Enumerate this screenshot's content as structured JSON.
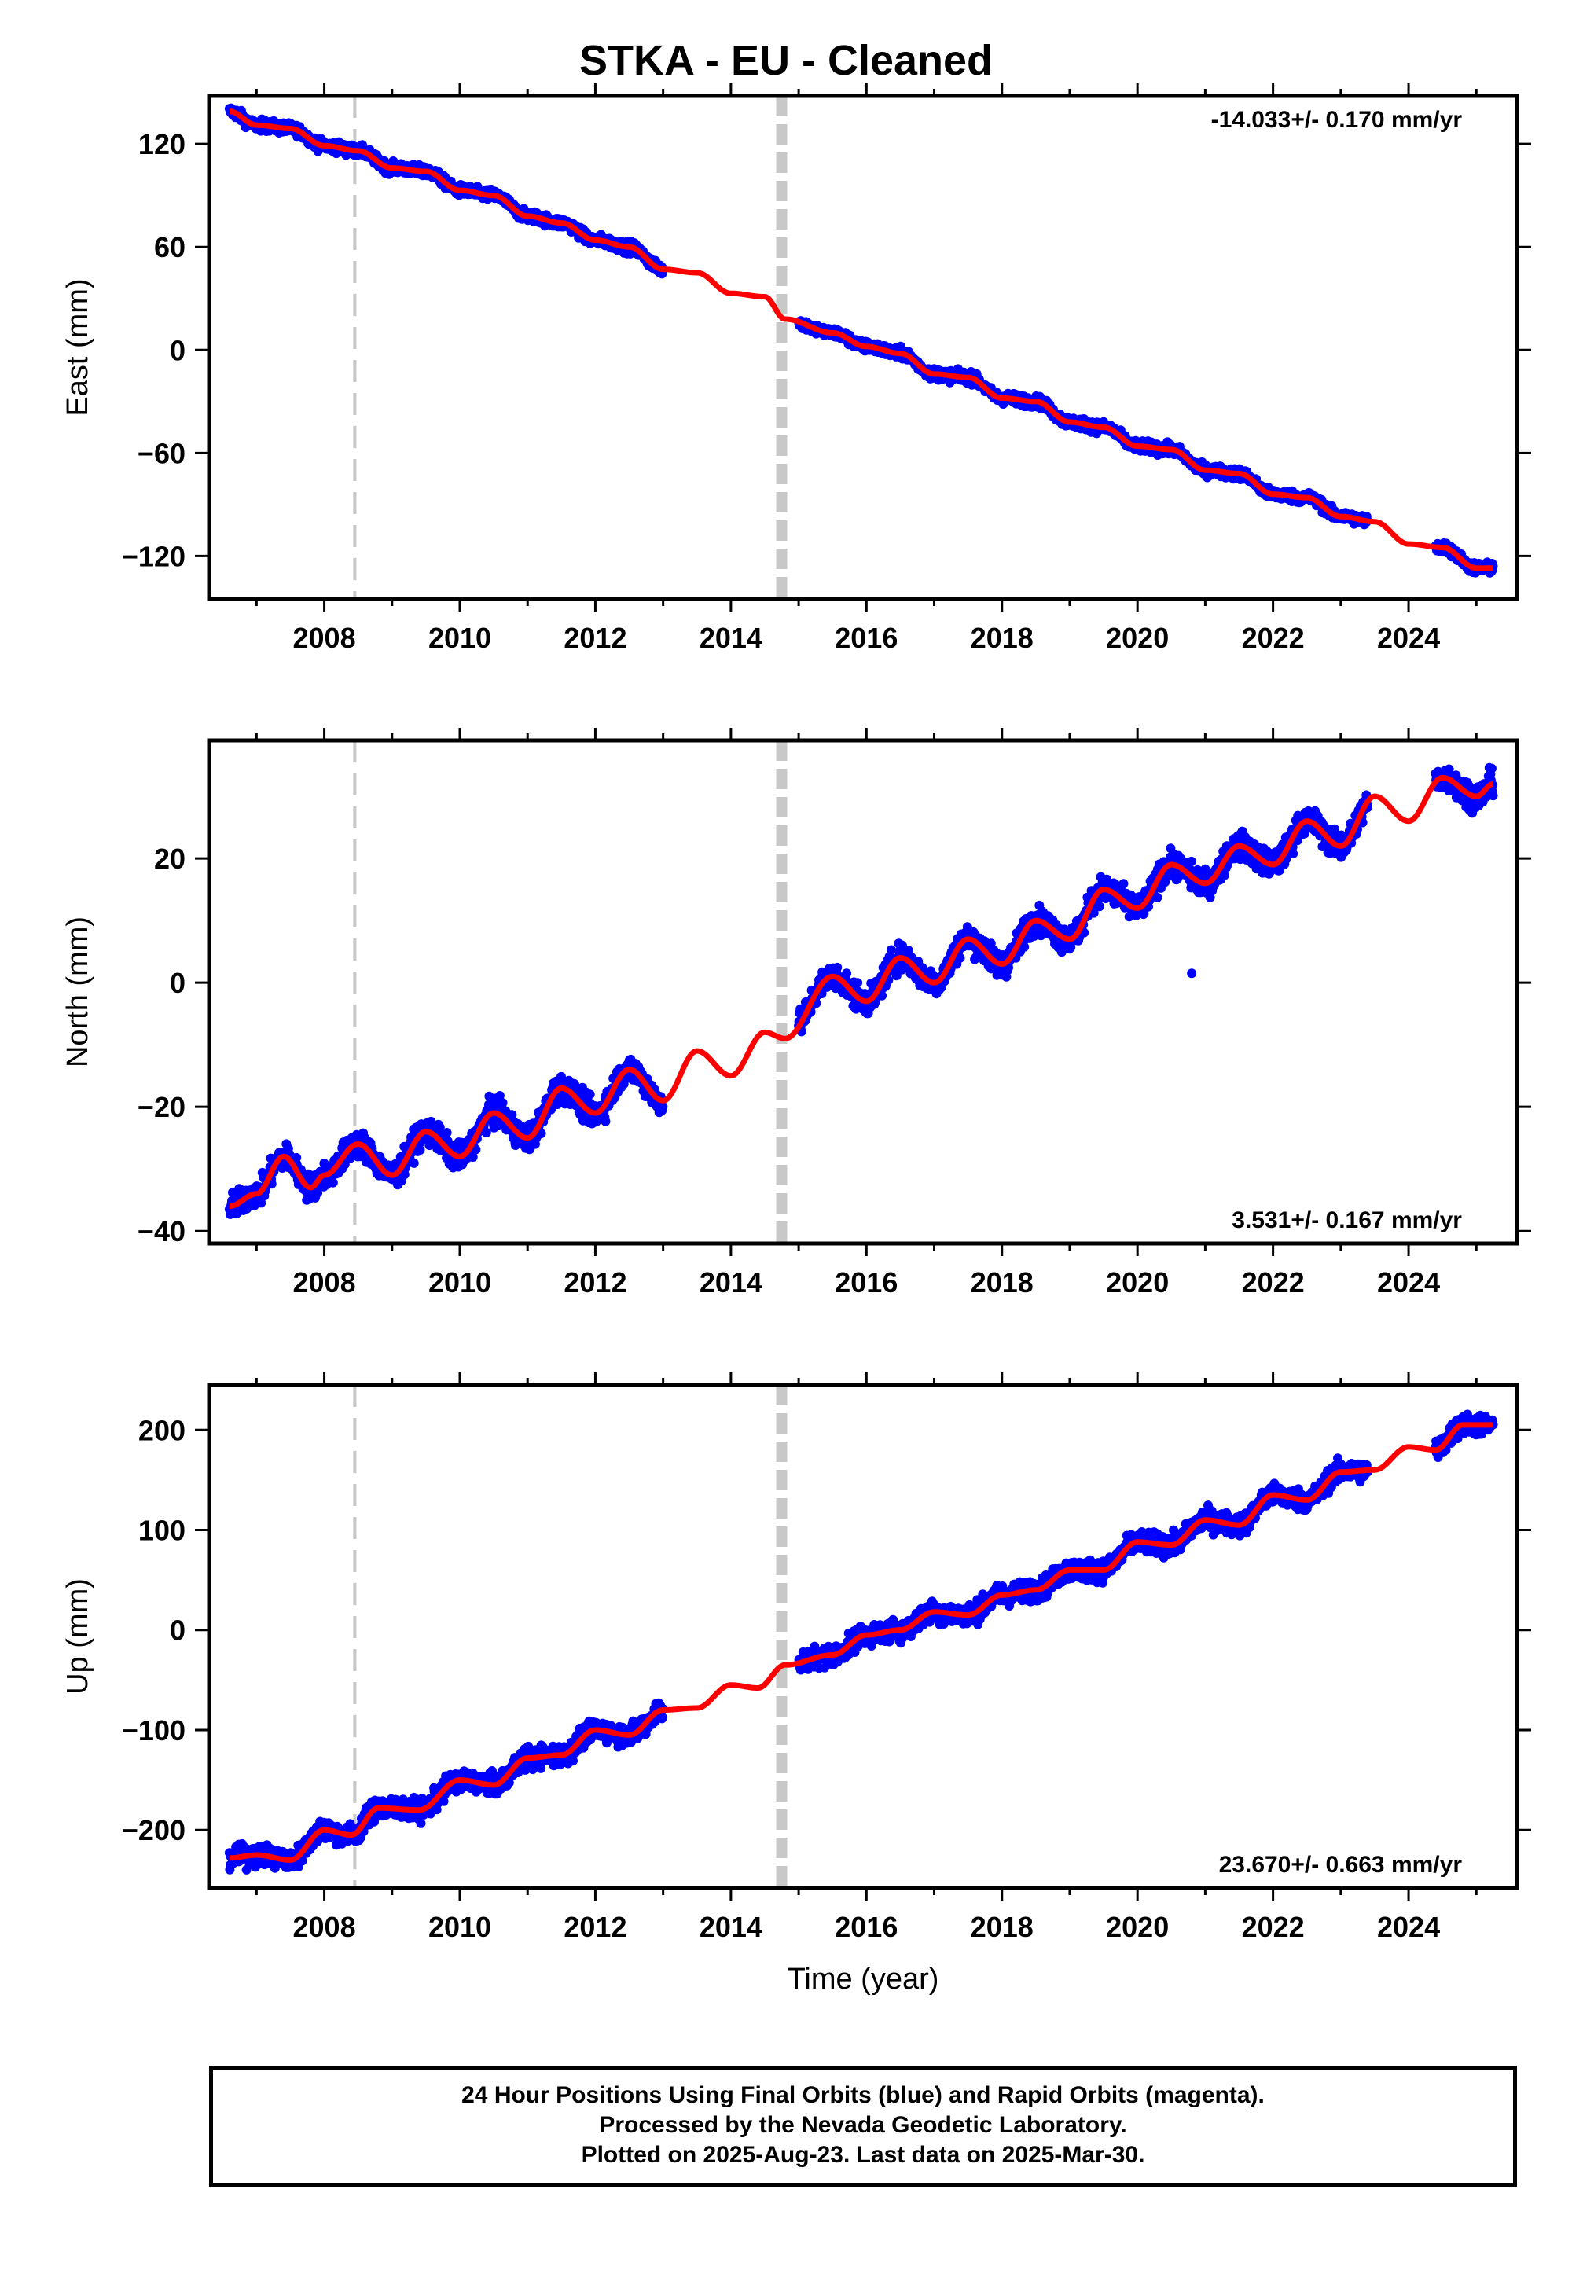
{
  "title": "STKA  - EU - Cleaned",
  "colors": {
    "data": "#0000ff",
    "model": "#ff0000",
    "equipment_change": "#c8c8c8"
  },
  "footer": {
    "line1": "24 Hour Positions Using Final Orbits (blue) and Rapid Orbits (magenta).",
    "line2": "Processed by the Nevada Geodetic Laboratory.",
    "line3": "Plotted on 2025-Aug-23. Last data on 2025-Mar-30."
  },
  "chart_data": [
    {
      "type": "scatter",
      "name": "east",
      "ylabel": "East (mm)",
      "xlabel": "",
      "xlim": [
        2006.3,
        2025.6
      ],
      "ylim": [
        -145,
        148
      ],
      "xticks": [
        2008,
        2010,
        2012,
        2014,
        2016,
        2018,
        2020,
        2022,
        2024
      ],
      "yticks": [
        -120,
        -60,
        0,
        60,
        120
      ],
      "rate_label": "-14.033+/- 0.170 mm/yr",
      "rate_position": "top-right",
      "equipment_changes": [
        2008.45,
        2014.75
      ],
      "data_segments": [
        [
          2006.6,
          2013.0
        ],
        [
          2015.0,
          2023.4
        ],
        [
          2024.4,
          2025.25
        ]
      ],
      "model_knots": [
        [
          2006.6,
          139
        ],
        [
          2007.0,
          131
        ],
        [
          2007.5,
          129
        ],
        [
          2008.0,
          119
        ],
        [
          2008.5,
          116
        ],
        [
          2009.0,
          106
        ],
        [
          2009.5,
          104
        ],
        [
          2010.0,
          93
        ],
        [
          2010.5,
          90
        ],
        [
          2011.0,
          78
        ],
        [
          2011.5,
          74
        ],
        [
          2012.0,
          64
        ],
        [
          2012.5,
          60
        ],
        [
          2013.0,
          47
        ],
        [
          2013.5,
          45
        ],
        [
          2014.0,
          33
        ],
        [
          2014.5,
          31
        ],
        [
          2014.8,
          18
        ],
        [
          2015.5,
          10
        ],
        [
          2016.0,
          2
        ],
        [
          2016.5,
          -2
        ],
        [
          2017.0,
          -14
        ],
        [
          2017.5,
          -16
        ],
        [
          2018.0,
          -28
        ],
        [
          2018.5,
          -30
        ],
        [
          2019.0,
          -42
        ],
        [
          2019.5,
          -45
        ],
        [
          2020.0,
          -56
        ],
        [
          2020.5,
          -58
        ],
        [
          2021.0,
          -70
        ],
        [
          2021.5,
          -72
        ],
        [
          2022.0,
          -84
        ],
        [
          2022.5,
          -86
        ],
        [
          2023.0,
          -97
        ],
        [
          2023.5,
          -100
        ],
        [
          2024.0,
          -113
        ],
        [
          2024.5,
          -115
        ],
        [
          2025.0,
          -127
        ],
        [
          2025.25,
          -127
        ]
      ],
      "scatter_noise": 3
    },
    {
      "type": "scatter",
      "name": "north",
      "ylabel": "North (mm)",
      "xlabel": "",
      "xlim": [
        2006.3,
        2025.6
      ],
      "ylim": [
        -42,
        39
      ],
      "xticks": [
        2008,
        2010,
        2012,
        2014,
        2016,
        2018,
        2020,
        2022,
        2024
      ],
      "yticks": [
        -40,
        -20,
        0,
        20
      ],
      "rate_label": "3.531+/- 0.167 mm/yr",
      "rate_position": "bottom-right",
      "equipment_changes": [
        2008.45,
        2014.75
      ],
      "data_segments": [
        [
          2006.6,
          2013.0
        ],
        [
          2015.0,
          2023.4
        ],
        [
          2024.4,
          2025.25
        ]
      ],
      "model_knots": [
        [
          2006.6,
          -36
        ],
        [
          2007.0,
          -34
        ],
        [
          2007.4,
          -28
        ],
        [
          2007.8,
          -33
        ],
        [
          2008.0,
          -31
        ],
        [
          2008.5,
          -26
        ],
        [
          2009.0,
          -31
        ],
        [
          2009.5,
          -24
        ],
        [
          2010.0,
          -28
        ],
        [
          2010.5,
          -21
        ],
        [
          2011.0,
          -25
        ],
        [
          2011.5,
          -17
        ],
        [
          2012.0,
          -21
        ],
        [
          2012.5,
          -14
        ],
        [
          2013.0,
          -19
        ],
        [
          2013.5,
          -11
        ],
        [
          2014.0,
          -15
        ],
        [
          2014.5,
          -8
        ],
        [
          2014.8,
          -9
        ],
        [
          2015.5,
          1
        ],
        [
          2016.0,
          -3
        ],
        [
          2016.5,
          4
        ],
        [
          2017.0,
          0
        ],
        [
          2017.5,
          7
        ],
        [
          2018.0,
          3
        ],
        [
          2018.5,
          10
        ],
        [
          2019.0,
          7
        ],
        [
          2019.5,
          15
        ],
        [
          2020.0,
          12
        ],
        [
          2020.5,
          19
        ],
        [
          2021.0,
          16
        ],
        [
          2021.5,
          22
        ],
        [
          2022.0,
          19
        ],
        [
          2022.5,
          26
        ],
        [
          2023.0,
          22
        ],
        [
          2023.5,
          30
        ],
        [
          2024.0,
          26
        ],
        [
          2024.5,
          33
        ],
        [
          2025.0,
          30
        ],
        [
          2025.25,
          32
        ]
      ],
      "scatter_noise": 2,
      "outliers": [
        [
          2020.8,
          1.5
        ]
      ]
    },
    {
      "type": "scatter",
      "name": "up",
      "ylabel": "Up (mm)",
      "xlabel": "Time (year)",
      "xlim": [
        2006.3,
        2025.6
      ],
      "ylim": [
        -258,
        245
      ],
      "xticks": [
        2008,
        2010,
        2012,
        2014,
        2016,
        2018,
        2020,
        2022,
        2024
      ],
      "yticks": [
        -200,
        -100,
        0,
        100,
        200
      ],
      "rate_label": "23.670+/- 0.663 mm/yr",
      "rate_position": "bottom-right",
      "equipment_changes": [
        2008.45,
        2014.75
      ],
      "data_segments": [
        [
          2006.6,
          2013.0
        ],
        [
          2015.0,
          2023.4
        ],
        [
          2024.4,
          2025.25
        ]
      ],
      "model_knots": [
        [
          2006.6,
          -228
        ],
        [
          2007.0,
          -225
        ],
        [
          2007.5,
          -230
        ],
        [
          2008.0,
          -200
        ],
        [
          2008.4,
          -205
        ],
        [
          2008.8,
          -178
        ],
        [
          2009.4,
          -180
        ],
        [
          2010.0,
          -150
        ],
        [
          2010.5,
          -155
        ],
        [
          2011.0,
          -128
        ],
        [
          2011.5,
          -125
        ],
        [
          2012.0,
          -100
        ],
        [
          2012.5,
          -105
        ],
        [
          2013.0,
          -80
        ],
        [
          2013.5,
          -78
        ],
        [
          2014.0,
          -55
        ],
        [
          2014.4,
          -58
        ],
        [
          2014.8,
          -35
        ],
        [
          2015.5,
          -25
        ],
        [
          2016.0,
          -5
        ],
        [
          2016.5,
          0
        ],
        [
          2017.0,
          18
        ],
        [
          2017.5,
          15
        ],
        [
          2018.0,
          35
        ],
        [
          2018.5,
          40
        ],
        [
          2019.0,
          60
        ],
        [
          2019.5,
          60
        ],
        [
          2020.0,
          88
        ],
        [
          2020.5,
          85
        ],
        [
          2021.0,
          110
        ],
        [
          2021.5,
          105
        ],
        [
          2022.0,
          135
        ],
        [
          2022.5,
          130
        ],
        [
          2023.0,
          158
        ],
        [
          2023.5,
          160
        ],
        [
          2024.0,
          183
        ],
        [
          2024.4,
          180
        ],
        [
          2024.8,
          205
        ],
        [
          2025.25,
          205
        ]
      ],
      "scatter_noise": 10
    }
  ]
}
